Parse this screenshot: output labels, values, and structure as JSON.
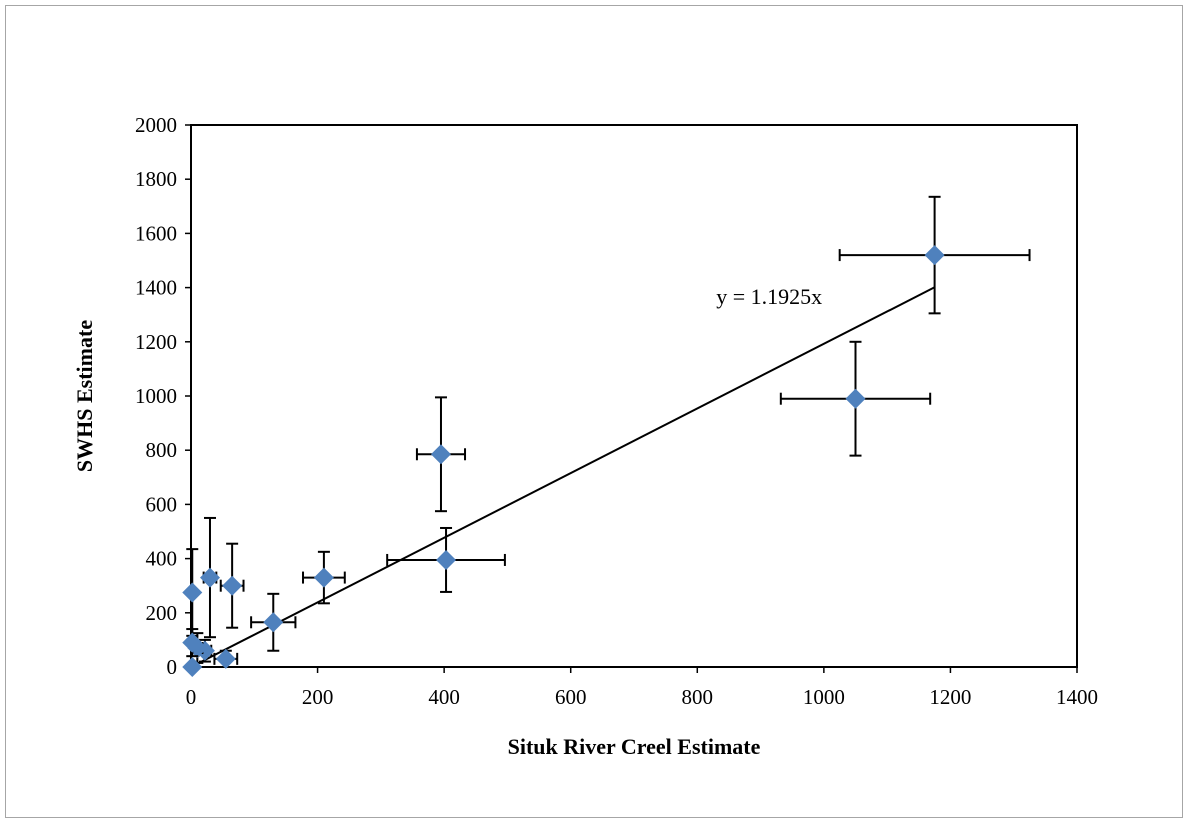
{
  "chart_data": {
    "type": "scatter",
    "title": "",
    "xlabel": "Situk River Creel Estimate",
    "ylabel": "SWHS Estimate",
    "xlim": [
      0,
      1400
    ],
    "ylim": [
      0,
      2000
    ],
    "xticks": [
      0,
      200,
      400,
      600,
      800,
      1000,
      1200,
      1400
    ],
    "yticks": [
      0,
      200,
      400,
      600,
      800,
      1000,
      1200,
      1400,
      1600,
      1800,
      2000
    ],
    "grid": false,
    "legend": "none",
    "marker": "diamond",
    "marker_color": "#4f81bd",
    "points": [
      {
        "x": 1175,
        "y": 1520,
        "xerr": 150,
        "yerr": 215
      },
      {
        "x": 1050,
        "y": 990,
        "xerr": 118,
        "yerr": 210
      },
      {
        "x": 395,
        "y": 785,
        "xerr": 38,
        "yerr": 210
      },
      {
        "x": 403,
        "y": 395,
        "xerr": 93,
        "yerr": 118
      },
      {
        "x": 210,
        "y": 330,
        "xerr": 33,
        "yerr": 95
      },
      {
        "x": 130,
        "y": 165,
        "xerr": 35,
        "yerr": 105
      },
      {
        "x": 65,
        "y": 300,
        "xerr": 18,
        "yerr": 155
      },
      {
        "x": 30,
        "y": 330,
        "xerr": 10,
        "yerr": 220
      },
      {
        "x": 2,
        "y": 275,
        "xerr": 3,
        "yerr": 160
      },
      {
        "x": 55,
        "y": 30,
        "xerr": 18,
        "yerr": 30
      },
      {
        "x": 22,
        "y": 60,
        "xerr": 10,
        "yerr": 40
      },
      {
        "x": 10,
        "y": 70,
        "xerr": 8,
        "yerr": 55
      },
      {
        "x": 2,
        "y": 90,
        "xerr": 3,
        "yerr": 50
      },
      {
        "x": 2,
        "y": 0,
        "xerr": 2,
        "yerr": 5
      }
    ],
    "trendline": {
      "slope": 1.1925,
      "x_range": [
        0,
        1175
      ],
      "color": "#000000"
    },
    "annotations": [
      {
        "text": "y = 1.1925x",
        "x": 830,
        "y": 1340
      }
    ]
  }
}
